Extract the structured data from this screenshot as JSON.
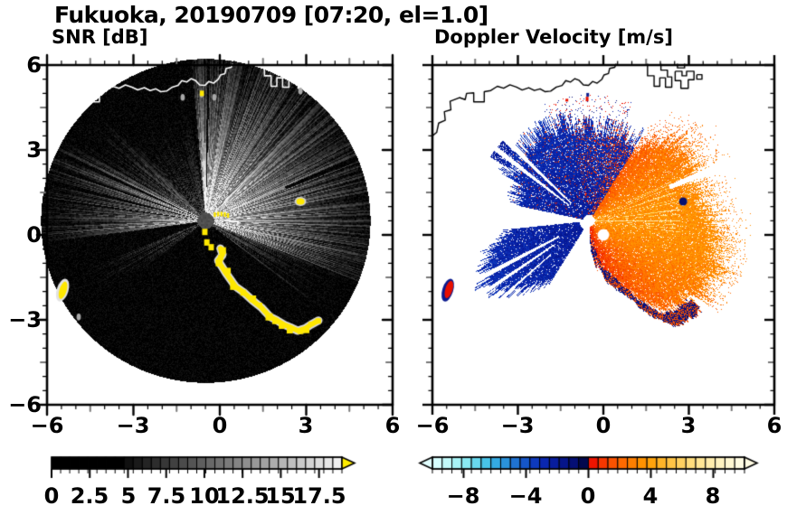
{
  "header": {
    "title": "Fukuoka, 20190709 [07:20, el=1.0]"
  },
  "snr_panel": {
    "subtitle": "SNR [dB]",
    "xticks": [
      "−6",
      "−3",
      "0",
      "3",
      "6"
    ],
    "yticks": [
      "6",
      "3",
      "0",
      "−3",
      "−6"
    ],
    "cbar_ticks": [
      "0",
      "2.5",
      "5",
      "7.5",
      "10",
      "12.5",
      "15",
      "17.5"
    ]
  },
  "vel_panel": {
    "subtitle": "Doppler Velocity [m/s]",
    "xticks": [
      "−6",
      "−3",
      "0",
      "3",
      "6"
    ],
    "cbar_ticks": [
      "−8",
      "−4",
      "0",
      "4",
      "8"
    ]
  },
  "chart_data": [
    {
      "type": "heatmap",
      "panel": "left",
      "title": "SNR [dB]",
      "xlim": [
        -6,
        6
      ],
      "ylim": [
        -6,
        6
      ],
      "xticks": [
        -6,
        -3,
        0,
        3,
        6
      ],
      "yticks": [
        -6,
        -3,
        0,
        3,
        6
      ],
      "minor_tick_interval": 0.5,
      "radar_disk_radius": 5.72,
      "colorbar": {
        "range": [
          0,
          19
        ],
        "segments": 32,
        "tick_values": [
          0,
          2.5,
          5,
          7.5,
          10,
          12.5,
          15,
          17.5
        ],
        "over_arrow_color": "#ffec00",
        "colors": [
          "#000000",
          "#000000",
          "#000000",
          "#000000",
          "#000000",
          "#000000",
          "#000000",
          "#000000",
          "#101010",
          "#1a1a1a",
          "#242424",
          "#2d2d2d",
          "#373737",
          "#414141",
          "#4b4b4b",
          "#545454",
          "#5e5e5e",
          "#686868",
          "#717171",
          "#7b7b7b",
          "#858585",
          "#8f8f8f",
          "#989898",
          "#a2a2a2",
          "#acacac",
          "#b6b6b6",
          "#bfbfbf",
          "#c9c9c9",
          "#d3d3d3",
          "#dddddd",
          "#e6e6e6",
          "#f0f0f0"
        ]
      },
      "features": {
        "center_dome": {
          "x": 0,
          "y": 0,
          "radius": 0.29,
          "color": "#4e4e4e"
        },
        "gain_profile": [
          [
            0,
            1.0
          ],
          [
            95,
            0.4
          ],
          [
            132,
            0.55
          ],
          [
            150,
            0.85
          ],
          [
            188,
            0.05
          ],
          [
            202,
            0.45
          ],
          [
            218,
            0.03
          ],
          [
            252,
            0.12
          ],
          [
            285,
            0.22
          ],
          [
            322,
            0.5
          ],
          [
            338,
            0.9
          ],
          [
            345,
            1.0
          ]
        ],
        "dark_spokes": [
          [
            22.9,
            0.9,
            3.0
          ],
          [
            155,
            0.8,
            0
          ],
          [
            160.5,
            0.6,
            0
          ],
          [
            166,
            0.7,
            0
          ],
          [
            172,
            0.5,
            0
          ],
          [
            89,
            0.5,
            0
          ],
          [
            97,
            0.6,
            0
          ],
          [
            107,
            0.5,
            0
          ],
          [
            207.5,
            0.8,
            0
          ],
          [
            212,
            0.6,
            0
          ]
        ],
        "clutter_color": "#ffe800",
        "clutter_arc": [
          [
            0.02,
            -0.48
          ],
          [
            0.12,
            -0.72
          ],
          [
            -0.02,
            -0.95
          ],
          [
            0.22,
            -1.35
          ],
          [
            0.5,
            -1.78
          ],
          [
            0.85,
            -2.05
          ],
          [
            1.1,
            -2.28
          ],
          [
            1.4,
            -2.52
          ],
          [
            1.7,
            -2.85
          ],
          [
            1.98,
            -3.02
          ],
          [
            2.22,
            -3.15
          ],
          [
            2.48,
            -3.3
          ],
          [
            2.72,
            -3.4
          ],
          [
            3.0,
            -3.32
          ],
          [
            3.2,
            -3.2
          ],
          [
            3.45,
            -3.05
          ]
        ],
        "edge_blob": {
          "x": -5.46,
          "y": -1.95
        },
        "target_blob": {
          "x": 2.8,
          "y": 1.18
        },
        "top_speck": {
          "x": -0.63,
          "y": 5.0
        },
        "ship_echoes": [
          [
            -1.29,
            4.86
          ],
          [
            -0.63,
            4.97
          ],
          [
            -0.19,
            4.86
          ],
          [
            2.8,
            5.08
          ],
          [
            -4.9,
            -2.9
          ]
        ],
        "coastline_color": "#ffffff"
      }
    },
    {
      "type": "heatmap",
      "panel": "right",
      "title": "Doppler Velocity [m/s]",
      "xlim": [
        -6,
        6
      ],
      "ylim": [
        -6,
        6
      ],
      "xticks": [
        -6,
        -3,
        0,
        3,
        6
      ],
      "yticks": [
        -6,
        -3,
        0,
        3,
        6
      ],
      "minor_tick_interval": 0.5,
      "radar_disk_radius": 5.72,
      "colorbar": {
        "range": [
          -10,
          10
        ],
        "segments": 32,
        "tick_values": [
          -8,
          -4,
          0,
          4,
          8
        ],
        "under_arrow_color": "#e2fefe",
        "over_arrow_color": "#fffbe2",
        "colors": [
          "#d6fefe",
          "#c2fafa",
          "#a8f3f6",
          "#8ae9f2",
          "#68d8ee",
          "#48c3e8",
          "#34aae2",
          "#2a92da",
          "#1f73d2",
          "#1556c8",
          "#0e3abd",
          "#0a27b0",
          "#081d9e",
          "#06158a",
          "#050f75",
          "#03094e",
          "#ee1400",
          "#f63700",
          "#fb5200",
          "#fe6a00",
          "#ff7f00",
          "#ff9200",
          "#ffa30c",
          "#ffb428",
          "#ffc345",
          "#ffd060",
          "#ffdc7c",
          "#ffe595",
          "#ffecac",
          "#fff2c0",
          "#fff7d2",
          "#fffbe2"
        ]
      },
      "features": {
        "center_hole_radius": 0.2,
        "red_fan_outline": [
          [
            -90,
            0.5
          ],
          [
            -75,
            1.95
          ],
          [
            -62,
            2.9
          ],
          [
            -52,
            4.1
          ],
          [
            -41,
            4.6
          ],
          [
            -30,
            4.85
          ],
          [
            -20,
            4.9
          ],
          [
            -10,
            4.7
          ],
          [
            0,
            4.5
          ],
          [
            12,
            4.15
          ],
          [
            22,
            4.05
          ],
          [
            32,
            4.35
          ],
          [
            42,
            4.3
          ],
          [
            50,
            3.7
          ],
          [
            58,
            3.3
          ]
        ],
        "blue_wedges": [
          {
            "az": [
              58,
              100
            ],
            "outer": 3.3,
            "red_speckle": 0.18
          },
          {
            "az": [
              100,
              132
            ],
            "outer": 3.5,
            "red_speckle": 0.05
          },
          {
            "az": [
              132,
              152
            ],
            "outer": 3.3,
            "red_speckle": 0.03
          },
          {
            "az": [
              152,
              168
            ],
            "outer": 2.7,
            "red_speckle": 0.03
          }
        ],
        "sw_wedge_profile": [
          [
            186,
            2.8
          ],
          [
            196,
            3.6
          ],
          [
            203,
            4.0
          ],
          [
            210,
            4.3
          ],
          [
            218,
            4.0
          ],
          [
            228,
            3.2
          ],
          [
            238,
            2.4
          ]
        ],
        "white_gaps": [
          [
            134.5,
            137,
            0.9
          ],
          [
            141,
            143.5,
            0.9
          ],
          [
            206.5,
            209,
            1.2
          ],
          [
            213.5,
            215.3,
            1.5
          ],
          [
            220.8,
            222,
            1.8
          ],
          [
            21.4,
            24.4,
            3.05
          ]
        ],
        "detached_patch": {
          "az": [
            135,
            147
          ],
          "r": [
            3.35,
            4.15
          ]
        },
        "rim_mottle_azimuth": [
          -89,
          -38
        ],
        "edge_blob": {
          "x": -5.46,
          "y": -1.95,
          "core": "#e81000",
          "ring": "#0a1a8e"
        },
        "target_blob": {
          "x": 2.8,
          "y": 1.18,
          "color": "#071070"
        },
        "top_specks": [
          [
            -0.55,
            4.95
          ],
          [
            -0.57,
            4.8
          ],
          [
            -1.28,
            4.76
          ]
        ],
        "coastline_color": "#000000"
      }
    }
  ],
  "map": {
    "coastline": [
      [
        -6.0,
        3.5
      ],
      [
        -5.85,
        3.62
      ],
      [
        -5.78,
        3.95
      ],
      [
        -5.55,
        4.05
      ],
      [
        -5.58,
        4.35
      ],
      [
        -5.35,
        4.42
      ],
      [
        -5.38,
        4.72
      ],
      [
        -5.05,
        4.85
      ],
      [
        -4.85,
        4.78
      ],
      [
        -4.8,
        5.0
      ],
      [
        -4.55,
        5.02
      ],
      [
        -4.55,
        4.7
      ],
      [
        -4.18,
        4.7
      ],
      [
        -4.18,
        5.06
      ],
      [
        -3.95,
        5.1
      ],
      [
        -3.72,
        5.25
      ],
      [
        -3.5,
        5.18
      ],
      [
        -3.28,
        5.3
      ],
      [
        -3.05,
        5.22
      ],
      [
        -2.85,
        5.12
      ],
      [
        -2.62,
        5.2
      ],
      [
        -2.42,
        5.1
      ],
      [
        -2.22,
        5.16
      ],
      [
        -2.05,
        5.06
      ],
      [
        -1.85,
        5.08
      ],
      [
        -1.65,
        5.22
      ],
      [
        -1.45,
        5.28
      ],
      [
        -1.32,
        5.45
      ],
      [
        -1.15,
        5.4
      ],
      [
        -1.0,
        5.52
      ],
      [
        -0.85,
        5.46
      ],
      [
        -0.7,
        5.3
      ],
      [
        -0.52,
        5.28
      ],
      [
        -0.38,
        5.42
      ],
      [
        -0.22,
        5.36
      ],
      [
        -0.05,
        5.5
      ],
      [
        0.02,
        5.65
      ],
      [
        0.18,
        5.7
      ],
      [
        0.22,
        5.88
      ],
      [
        0.4,
        5.92
      ],
      [
        0.45,
        6.05
      ]
    ],
    "harbor_blocks": [
      [
        [
          1.55,
          6.05
        ],
        [
          1.55,
          5.62
        ],
        [
          1.78,
          5.62
        ],
        [
          1.78,
          5.25
        ],
        [
          1.98,
          5.25
        ],
        [
          1.98,
          5.55
        ],
        [
          2.18,
          5.55
        ],
        [
          2.18,
          5.22
        ],
        [
          2.4,
          5.22
        ],
        [
          2.4,
          5.58
        ],
        [
          2.25,
          5.58
        ],
        [
          2.25,
          5.82
        ],
        [
          2.02,
          5.82
        ],
        [
          2.02,
          6.05
        ]
      ],
      [
        [
          2.52,
          5.78
        ],
        [
          2.52,
          5.45
        ],
        [
          2.72,
          5.45
        ],
        [
          2.72,
          5.18
        ],
        [
          2.98,
          5.18
        ],
        [
          2.98,
          5.48
        ],
        [
          3.18,
          5.48
        ],
        [
          3.18,
          5.78
        ],
        [
          2.92,
          5.78
        ],
        [
          2.92,
          5.62
        ],
        [
          2.76,
          5.62
        ],
        [
          2.76,
          5.78
        ],
        [
          2.52,
          5.78
        ]
      ],
      [
        [
          2.6,
          6.05
        ],
        [
          2.6,
          5.9
        ],
        [
          2.85,
          5.9
        ],
        [
          2.85,
          6.05
        ]
      ],
      [
        [
          3.28,
          5.66
        ],
        [
          3.46,
          5.66
        ],
        [
          3.46,
          5.5
        ],
        [
          3.28,
          5.5
        ],
        [
          3.28,
          5.66
        ]
      ]
    ]
  }
}
